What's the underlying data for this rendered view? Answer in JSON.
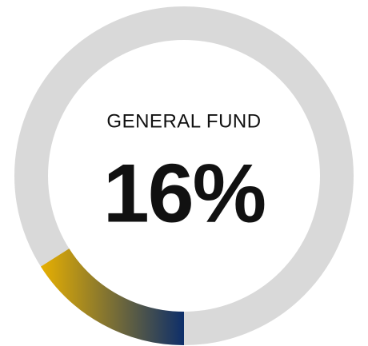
{
  "chart_data": {
    "type": "gauge",
    "title": "GENERAL FUND",
    "values": [
      16
    ],
    "value_labels": [
      "16%"
    ],
    "ylim": [
      0,
      100
    ],
    "track_color": "#d9d9d9",
    "gradient": [
      "#e8b000",
      "#0b2d6b"
    ]
  }
}
